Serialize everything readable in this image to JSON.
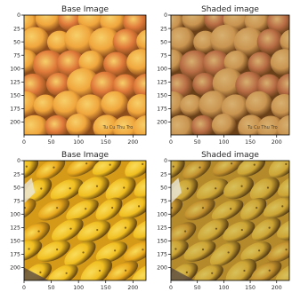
{
  "chart_data": [
    {
      "type": "image",
      "title": "Base Image",
      "subject": "apricots",
      "watermark": "Tu Cu Thu Tro",
      "xticks": [
        0,
        50,
        100,
        150,
        200
      ],
      "yticks": [
        0,
        25,
        50,
        75,
        100,
        125,
        150,
        175,
        200
      ],
      "xlim": [
        0,
        224
      ],
      "ylim": [
        224,
        0
      ],
      "shading": "none",
      "palette": {
        "bg": "#e9a44a",
        "fruit": "#f0a63c",
        "blush": "#e07a3a",
        "highlight": "#f7cf6a",
        "shadow": "#8e4e1c"
      }
    },
    {
      "type": "image",
      "title": "Shaded image",
      "subject": "apricots",
      "watermark": "Tu Cu Thu Tro",
      "xticks": [
        0,
        50,
        100,
        150,
        200
      ],
      "yticks": [
        0,
        25,
        50,
        75,
        100,
        125,
        150,
        175,
        200
      ],
      "xlim": [
        0,
        224
      ],
      "ylim": [
        224,
        0
      ],
      "shading": "darkened",
      "palette": {
        "bg": "#c08e4c",
        "fruit": "#c99450",
        "blush": "#b86c44",
        "highlight": "#d8b070",
        "shadow": "#6a4018"
      }
    },
    {
      "type": "image",
      "title": "Base Image",
      "subject": "yellow mangoes",
      "watermark": "",
      "xticks": [
        0,
        50,
        100,
        150,
        200
      ],
      "yticks": [
        0,
        25,
        50,
        75,
        100,
        125,
        150,
        175,
        200
      ],
      "xlim": [
        0,
        224
      ],
      "ylim": [
        224,
        0
      ],
      "shading": "none",
      "palette": {
        "bg": "#d49a18",
        "fruit": "#f0be20",
        "blush": "#e8a81c",
        "highlight": "#f9dc5a",
        "shadow": "#6a4a10"
      }
    },
    {
      "type": "image",
      "title": "Shaded image",
      "subject": "yellow mangoes",
      "watermark": "",
      "xticks": [
        0,
        50,
        100,
        150,
        200
      ],
      "yticks": [
        0,
        25,
        50,
        75,
        100,
        125,
        150,
        175,
        200
      ],
      "xlim": [
        0,
        224
      ],
      "ylim": [
        224,
        0
      ],
      "shading": "darkened",
      "palette": {
        "bg": "#b48a2a",
        "fruit": "#cca434",
        "blush": "#c4922e",
        "highlight": "#d8c05a",
        "shadow": "#5a4014"
      }
    }
  ]
}
